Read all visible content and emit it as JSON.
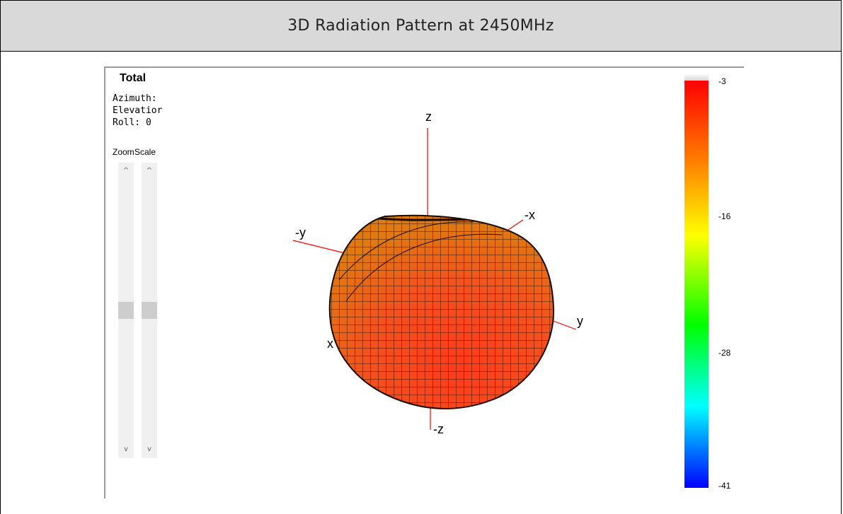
{
  "page": {
    "title": "3D Radiation Pattern at 2450MHz"
  },
  "viewer": {
    "title": "Total",
    "info": {
      "azimuth": "Azimuth:",
      "elevation": "Elevatior",
      "roll": "Roll: 0"
    },
    "sliders": {
      "zoom_label": "Zoom",
      "scale_label": "Scale",
      "up_glyph": "^",
      "down_glyph": "v",
      "zoom_level": 0.5,
      "scale_level": 0.5
    },
    "axes": {
      "z": "z",
      "neg_z": "-z",
      "x": "x",
      "neg_x": "-x",
      "y": "y",
      "neg_y": "-y"
    },
    "axis_color": "#ff0000",
    "surface_color": "#f35a1f",
    "colorbar": {
      "ticks": [
        "-3",
        "-16",
        "-28",
        "-41"
      ],
      "colors": [
        "#ff0000",
        "#ff8000",
        "#ffff00",
        "#00ff00",
        "#00ffff",
        "#0000ff"
      ],
      "top_cap_color": "#cfcfcf"
    }
  }
}
